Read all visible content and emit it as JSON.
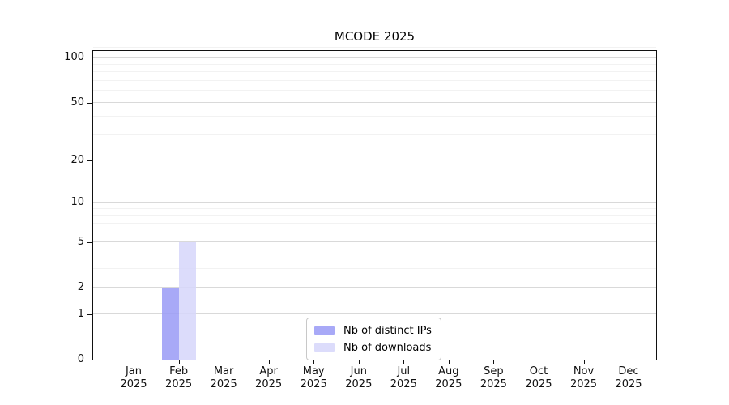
{
  "title": "MCODE 2025",
  "chart_data": {
    "type": "bar",
    "title": "MCODE 2025",
    "categories": [
      "Jan",
      "Feb",
      "Mar",
      "Apr",
      "May",
      "Jun",
      "Jul",
      "Aug",
      "Sep",
      "Oct",
      "Nov",
      "Dec"
    ],
    "category_year": "2025",
    "series": [
      {
        "name": "Nb of distinct IPs",
        "color": "#999af6",
        "alpha": 0.85,
        "values": [
          0,
          2,
          0,
          0,
          0,
          0,
          0,
          0,
          0,
          0,
          0,
          0
        ]
      },
      {
        "name": "Nb of downloads",
        "color": "#d6d6fa",
        "alpha": 0.85,
        "values": [
          0,
          5,
          0,
          0,
          0,
          0,
          0,
          0,
          0,
          0,
          0,
          0
        ]
      }
    ],
    "xlabel": "",
    "ylabel": "",
    "y_scale": "log1p",
    "y_max": 111,
    "y_ticks": [
      0,
      1,
      2,
      5,
      10,
      20,
      50,
      100
    ],
    "y_minor_ticks": [
      3,
      4,
      6,
      7,
      8,
      9,
      30,
      40,
      60,
      70,
      80,
      90
    ],
    "grid": "horizontal",
    "legend_position": "lower center"
  }
}
